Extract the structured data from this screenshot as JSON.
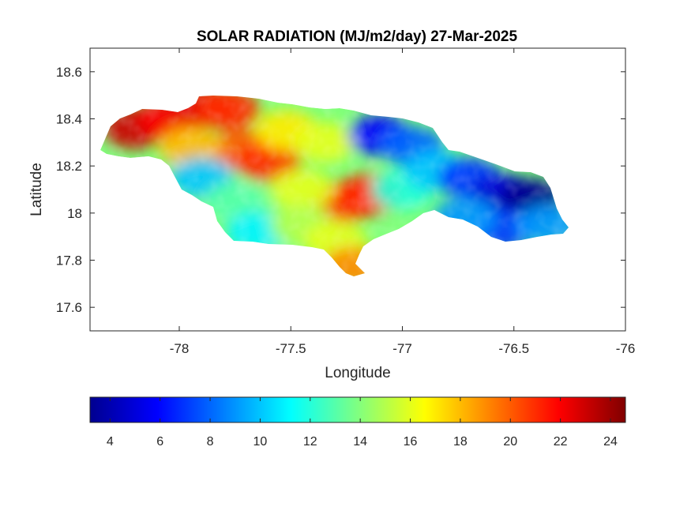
{
  "chart_data": {
    "type": "heatmap",
    "title": "SOLAR RADIATION (MJ/m2/day) 27-Mar-2025",
    "xlabel": "Longitude",
    "ylabel": "Latitude",
    "xlim": [
      -78.4,
      -76
    ],
    "ylim": [
      17.5,
      18.7
    ],
    "xticks": [
      -78,
      -77.5,
      -77,
      -76.5,
      -76
    ],
    "xtick_labels": [
      "-78",
      "-77.5",
      "-77",
      "-76.5",
      "-76"
    ],
    "yticks": [
      17.6,
      17.8,
      18,
      18.2,
      18.4,
      18.6
    ],
    "ytick_labels": [
      "17.6",
      "17.8",
      "18",
      "18.2",
      "18.4",
      "18.6"
    ],
    "colormap": "jet",
    "colorbar": {
      "location": "below",
      "clim": [
        3.2,
        24.6
      ],
      "ticks": [
        4,
        6,
        8,
        10,
        12,
        14,
        16,
        18,
        20,
        22,
        24
      ],
      "tick_labels": [
        "4",
        "6",
        "8",
        "10",
        "12",
        "14",
        "16",
        "18",
        "20",
        "22",
        "24"
      ]
    },
    "regions": [
      {
        "lon": -78.2,
        "lat": 18.36,
        "value": 23
      },
      {
        "lon": -78.05,
        "lat": 18.4,
        "value": 22
      },
      {
        "lon": -77.88,
        "lat": 18.45,
        "value": 22.5
      },
      {
        "lon": -77.78,
        "lat": 18.44,
        "value": 21
      },
      {
        "lon": -77.72,
        "lat": 18.27,
        "value": 20
      },
      {
        "lon": -77.6,
        "lat": 18.22,
        "value": 21
      },
      {
        "lon": -77.95,
        "lat": 18.28,
        "value": 18
      },
      {
        "lon": -77.52,
        "lat": 18.35,
        "value": 17
      },
      {
        "lon": -77.35,
        "lat": 18.3,
        "value": 16
      },
      {
        "lon": -77.25,
        "lat": 18.05,
        "value": 21
      },
      {
        "lon": -77.15,
        "lat": 18.08,
        "value": 21
      },
      {
        "lon": -77.9,
        "lat": 18.15,
        "value": 10
      },
      {
        "lon": -77.75,
        "lat": 18.05,
        "value": 13
      },
      {
        "lon": -77.65,
        "lat": 17.92,
        "value": 11
      },
      {
        "lon": -77.45,
        "lat": 18.1,
        "value": 16
      },
      {
        "lon": -77.45,
        "lat": 17.95,
        "value": 15
      },
      {
        "lon": -77.3,
        "lat": 17.88,
        "value": 16
      },
      {
        "lon": -77.22,
        "lat": 17.77,
        "value": 19
      },
      {
        "lon": -77.1,
        "lat": 18.33,
        "value": 6
      },
      {
        "lon": -76.95,
        "lat": 18.28,
        "value": 8
      },
      {
        "lon": -77.0,
        "lat": 18.1,
        "value": 12
      },
      {
        "lon": -76.85,
        "lat": 18.18,
        "value": 10
      },
      {
        "lon": -76.7,
        "lat": 18.15,
        "value": 7
      },
      {
        "lon": -76.55,
        "lat": 18.08,
        "value": 5
      },
      {
        "lon": -76.42,
        "lat": 18.06,
        "value": 3.5
      },
      {
        "lon": -76.55,
        "lat": 17.93,
        "value": 7
      },
      {
        "lon": -76.72,
        "lat": 17.98,
        "value": 9
      },
      {
        "lon": -76.35,
        "lat": 17.95,
        "value": 9
      }
    ]
  }
}
